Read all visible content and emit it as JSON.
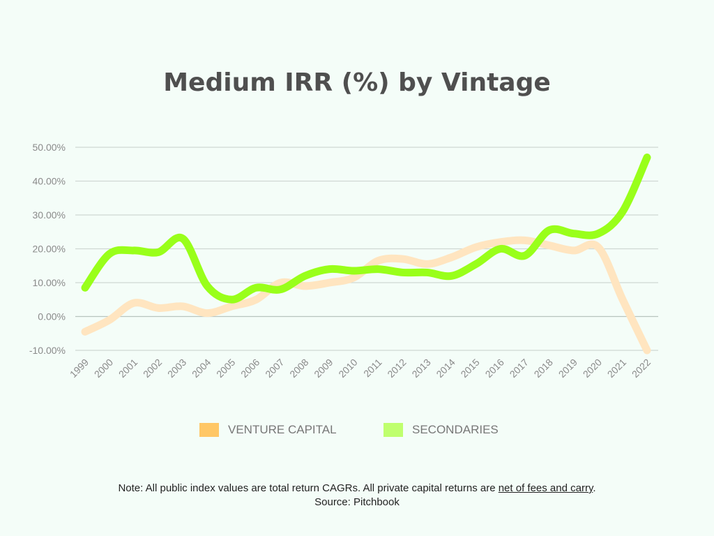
{
  "chart_data": {
    "type": "line",
    "title": "Medium IRR (%) by Vintage",
    "xlabel": "",
    "ylabel": "",
    "ylim": [
      -10,
      50
    ],
    "yticks": [
      "-10.00%",
      "0.00%",
      "10.00%",
      "20.00%",
      "30.00%",
      "40.00%",
      "50.00%"
    ],
    "ytick_values": [
      -10,
      0,
      10,
      20,
      30,
      40,
      50
    ],
    "categories": [
      "1999",
      "2000",
      "2001",
      "2002",
      "2003",
      "2004",
      "2005",
      "2006",
      "2007",
      "2008",
      "2009",
      "2010",
      "2011",
      "2012",
      "2013",
      "2014",
      "2015",
      "2016",
      "2017",
      "2018",
      "2019",
      "2020",
      "2021",
      "2022"
    ],
    "grid": true,
    "legend_position": "bottom",
    "series": [
      {
        "name": "VENTURE CAPITAL",
        "color": "#ffc766",
        "line_color": "#ffe5c0",
        "values": [
          -4.5,
          -1,
          4,
          2.5,
          3,
          1,
          3,
          5,
          10,
          9,
          10,
          11.5,
          16.5,
          17,
          15.5,
          17.5,
          20.5,
          22,
          22.5,
          21,
          19.5,
          20.5,
          5,
          -10
        ]
      },
      {
        "name": "SECONDARIES",
        "color": "#bfff6e",
        "line_color": "#99ff1a",
        "values": [
          8.5,
          18.5,
          19.5,
          19,
          23,
          9,
          5,
          8.5,
          8,
          12,
          14,
          13.5,
          14,
          13,
          13,
          12,
          15.5,
          20,
          18,
          25.5,
          24.5,
          24.5,
          31,
          47
        ]
      }
    ]
  },
  "note": {
    "text_before": "Note: All public index values are total return CAGRs. All private capital returns are ",
    "underlined": "net of fees and carry",
    "text_after": ".",
    "source": "Source: Pitchbook"
  }
}
